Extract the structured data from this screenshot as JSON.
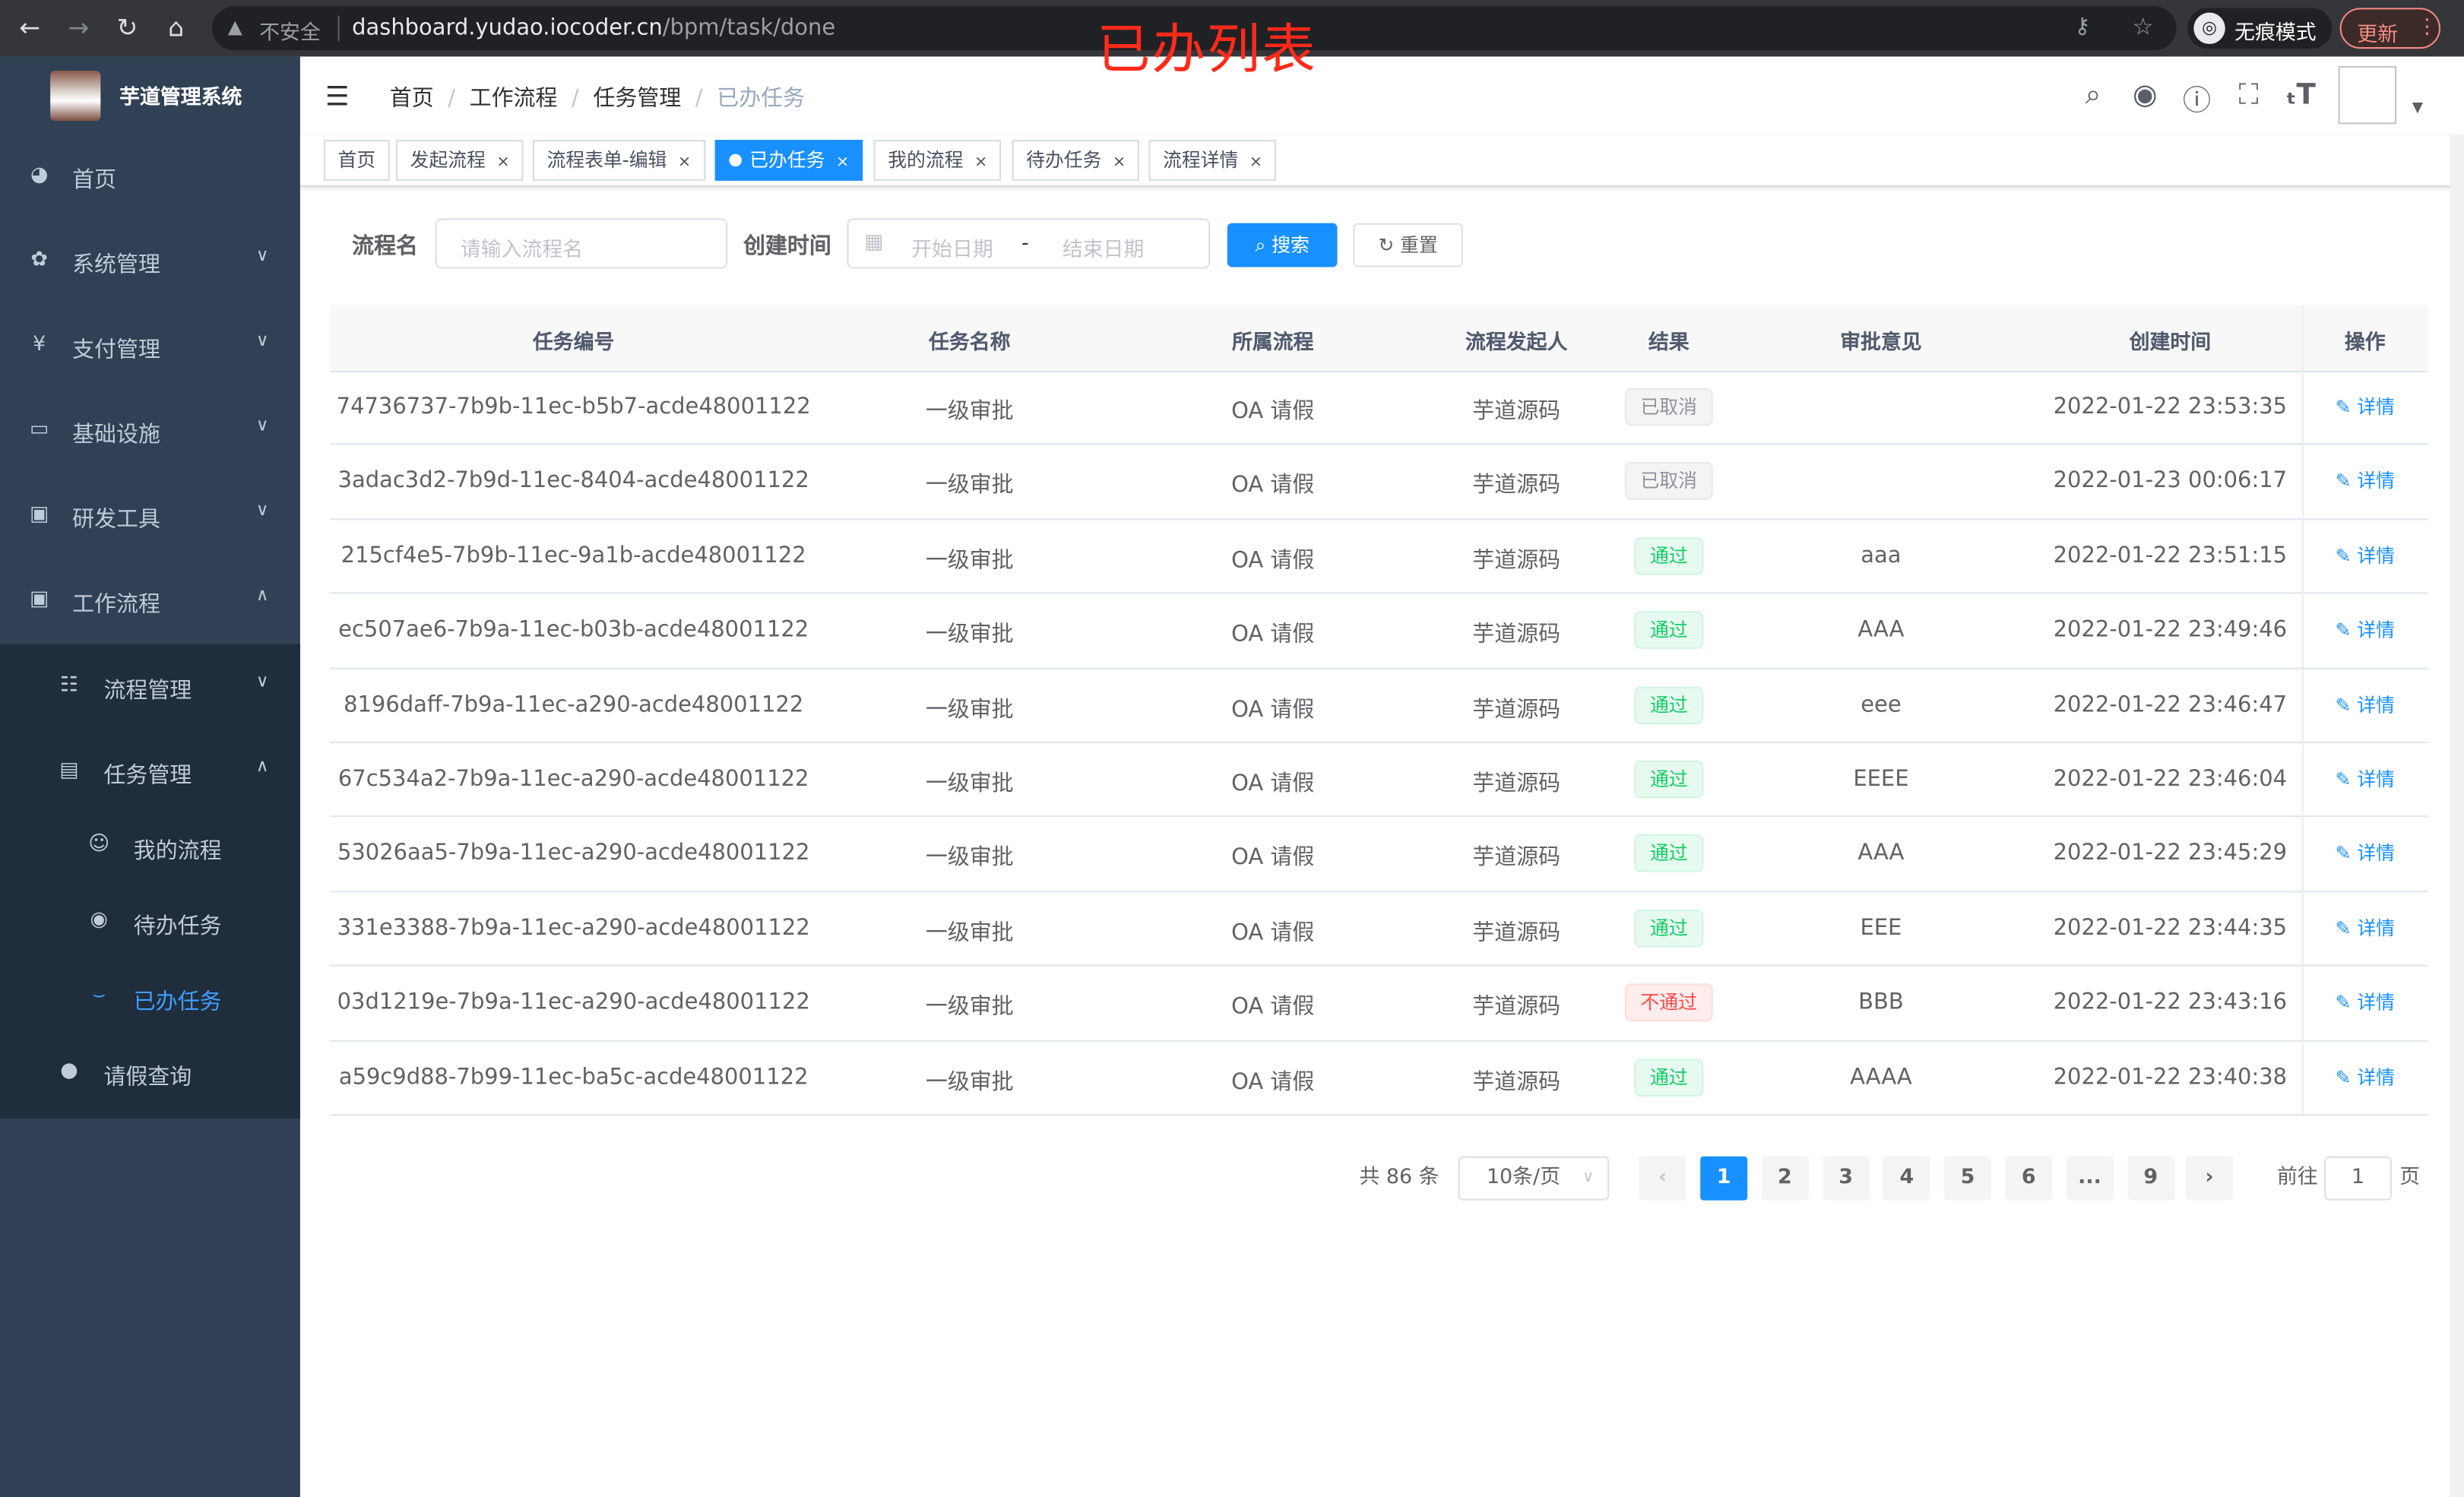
{
  "browser": {
    "url_host": "dashboard.yudao.iocoder.cn",
    "url_path": "/bpm/task/done",
    "security_label": "不安全",
    "incognito_label": "无痕模式",
    "update_label": "更新"
  },
  "overlay_title": "已办列表",
  "sidebar": {
    "title": "芋道管理系统",
    "items": [
      {
        "label": "首页",
        "icon": "dashboard-icon"
      },
      {
        "label": "系统管理",
        "icon": "gear-icon"
      },
      {
        "label": "支付管理",
        "icon": "yen-icon"
      },
      {
        "label": "基础设施",
        "icon": "monitor-icon"
      },
      {
        "label": "研发工具",
        "icon": "toolbox-icon"
      },
      {
        "label": "工作流程",
        "icon": "toolbox-icon"
      },
      {
        "label": "流程管理",
        "icon": "tree-list-icon"
      },
      {
        "label": "任务管理",
        "icon": "task-icon"
      },
      {
        "label": "我的流程",
        "icon": "people-icon"
      },
      {
        "label": "待办任务",
        "icon": "eye-icon"
      },
      {
        "label": "已办任务",
        "icon": "done-icon"
      },
      {
        "label": "请假查询",
        "icon": "user-icon"
      }
    ]
  },
  "breadcrumb": [
    "首页",
    "工作流程",
    "任务管理",
    "已办任务"
  ],
  "tags": [
    {
      "label": "首页",
      "closable": false,
      "active": false
    },
    {
      "label": "发起流程",
      "closable": true,
      "active": false
    },
    {
      "label": "流程表单-编辑",
      "closable": true,
      "active": false
    },
    {
      "label": "已办任务",
      "closable": true,
      "active": true
    },
    {
      "label": "我的流程",
      "closable": true,
      "active": false
    },
    {
      "label": "待办任务",
      "closable": true,
      "active": false
    },
    {
      "label": "流程详情",
      "closable": true,
      "active": false
    }
  ],
  "search": {
    "name_label": "流程名",
    "name_placeholder": "请输入流程名",
    "time_label": "创建时间",
    "start_placeholder": "开始日期",
    "range_sep": "-",
    "end_placeholder": "结束日期",
    "search_button": "搜索",
    "reset_button": "重置"
  },
  "table": {
    "columns": [
      "任务编号",
      "任务名称",
      "所属流程",
      "流程发起人",
      "结果",
      "审批意见",
      "创建时间",
      "操作"
    ],
    "action_label": "详情",
    "rows": [
      {
        "id": "74736737-7b9b-11ec-b5b7-acde48001122",
        "name": "一级审批",
        "process": "OA 请假",
        "starter": "芋道源码",
        "result": "已取消",
        "status": "cancel",
        "comment": "",
        "time": "2022-01-22 23:53:35"
      },
      {
        "id": "3adac3d2-7b9d-11ec-8404-acde48001122",
        "name": "一级审批",
        "process": "OA 请假",
        "starter": "芋道源码",
        "result": "已取消",
        "status": "cancel",
        "comment": "",
        "time": "2022-01-23 00:06:17"
      },
      {
        "id": "215cf4e5-7b9b-11ec-9a1b-acde48001122",
        "name": "一级审批",
        "process": "OA 请假",
        "starter": "芋道源码",
        "result": "通过",
        "status": "pass",
        "comment": "aaa",
        "time": "2022-01-22 23:51:15"
      },
      {
        "id": "ec507ae6-7b9a-11ec-b03b-acde48001122",
        "name": "一级审批",
        "process": "OA 请假",
        "starter": "芋道源码",
        "result": "通过",
        "status": "pass",
        "comment": "AAA",
        "time": "2022-01-22 23:49:46"
      },
      {
        "id": "8196daff-7b9a-11ec-a290-acde48001122",
        "name": "一级审批",
        "process": "OA 请假",
        "starter": "芋道源码",
        "result": "通过",
        "status": "pass",
        "comment": "eee",
        "time": "2022-01-22 23:46:47"
      },
      {
        "id": "67c534a2-7b9a-11ec-a290-acde48001122",
        "name": "一级审批",
        "process": "OA 请假",
        "starter": "芋道源码",
        "result": "通过",
        "status": "pass",
        "comment": "EEEE",
        "time": "2022-01-22 23:46:04"
      },
      {
        "id": "53026aa5-7b9a-11ec-a290-acde48001122",
        "name": "一级审批",
        "process": "OA 请假",
        "starter": "芋道源码",
        "result": "通过",
        "status": "pass",
        "comment": "AAA",
        "time": "2022-01-22 23:45:29"
      },
      {
        "id": "331e3388-7b9a-11ec-a290-acde48001122",
        "name": "一级审批",
        "process": "OA 请假",
        "starter": "芋道源码",
        "result": "通过",
        "status": "pass",
        "comment": "EEE",
        "time": "2022-01-22 23:44:35"
      },
      {
        "id": "03d1219e-7b9a-11ec-a290-acde48001122",
        "name": "一级审批",
        "process": "OA 请假",
        "starter": "芋道源码",
        "result": "不通过",
        "status": "reject",
        "comment": "BBB",
        "time": "2022-01-22 23:43:16"
      },
      {
        "id": "a59c9d88-7b99-11ec-ba5c-acde48001122",
        "name": "一级审批",
        "process": "OA 请假",
        "starter": "芋道源码",
        "result": "通过",
        "status": "pass",
        "comment": "AAAA",
        "time": "2022-01-22 23:40:38"
      }
    ]
  },
  "status_colors": {
    "pass": {
      "fg": "#13ce66",
      "bg": "#e7faf0",
      "border": "#d0f5e0"
    },
    "cancel": {
      "fg": "#909399",
      "bg": "#f4f4f5",
      "border": "#e9e9eb"
    },
    "reject": {
      "fg": "#ff4949",
      "bg": "#ffeded",
      "border": "#ffdbdb"
    }
  },
  "pagination": {
    "total_text": "共 86 条",
    "page_size": "10条/页",
    "pages": [
      "1",
      "2",
      "3",
      "4",
      "5",
      "6",
      "...",
      "9"
    ],
    "current": "1",
    "goto_label": "前往",
    "goto_value": "1",
    "goto_suffix": "页"
  },
  "accent_color": "#1890ff"
}
